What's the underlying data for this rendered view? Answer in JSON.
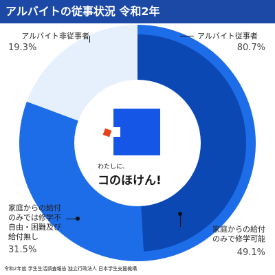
{
  "chart_data": [
    {
      "type": "pie",
      "variant": "donut",
      "title": "アルバイトの従事状況 令和2年",
      "slices": [
        {
          "label": "アルバイト従事者",
          "value": 80.7,
          "value_label": "80.7%",
          "color": "#1e6de8"
        },
        {
          "label": "アルバイト非従事者",
          "value": 19.3,
          "value_label": "19.3%",
          "color": "#e6f0fc"
        }
      ]
    },
    {
      "type": "pie",
      "variant": "inner-ring",
      "slices": [
        {
          "label": "家庭からの給付のみで修学可能",
          "label_lines": [
            "家庭からの給付",
            "のみで修学可能"
          ],
          "value": 49.1,
          "value_label": "49.1%",
          "color": "#0c48b4"
        },
        {
          "label": "家庭からの給付のみでは修学不自由・困難及び給付無し",
          "label_lines": [
            "家庭からの給付",
            "のみでは修学不",
            "自由・困難及び",
            "給付無し"
          ],
          "value": 31.5,
          "value_label": "31.5%",
          "color": "#1e6de8"
        }
      ]
    }
  ],
  "center": {
    "tagline_small": "わたしに、",
    "tagline_big": "コのほけん!"
  },
  "footer": "令和2年度 学生生活調査報告 独立行政法人 日本学生支援機構"
}
